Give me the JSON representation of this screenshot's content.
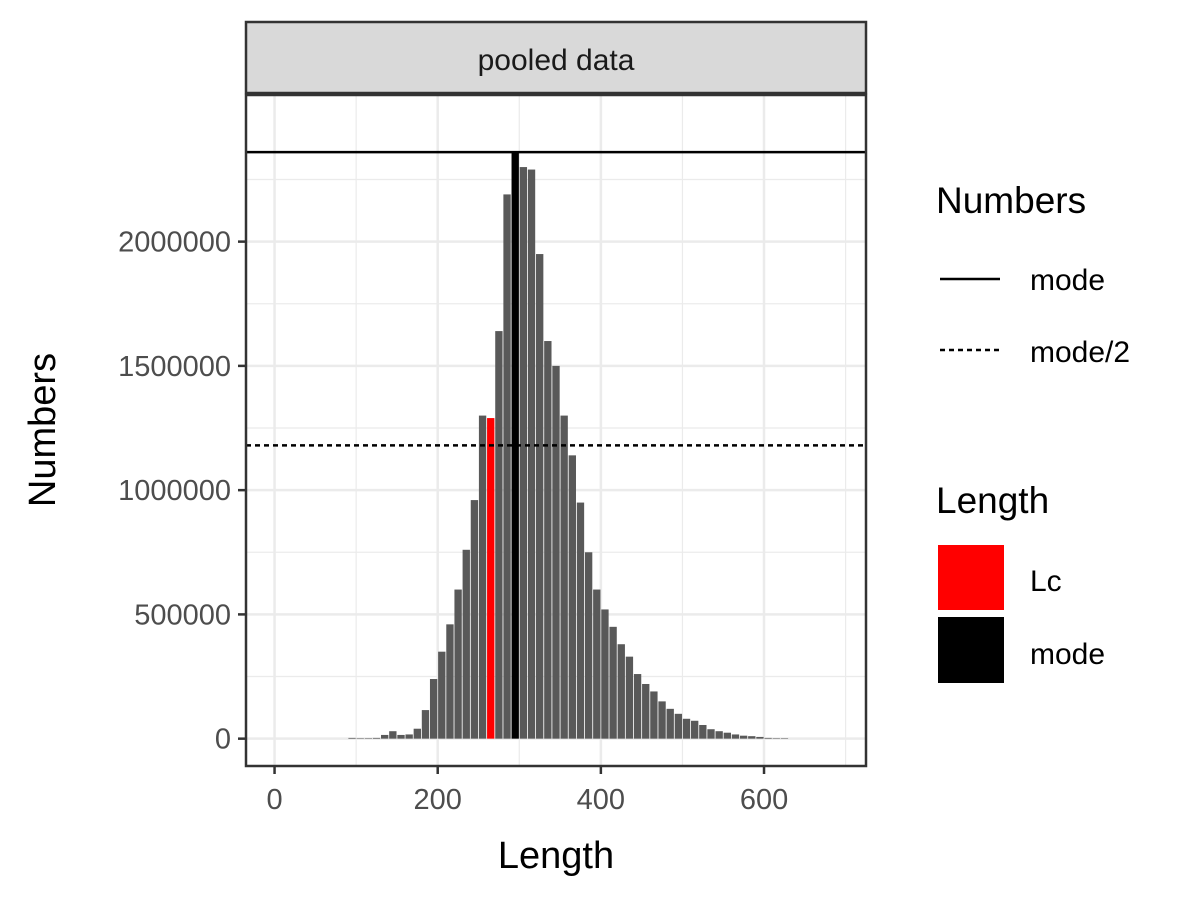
{
  "chart_data": {
    "type": "bar",
    "panel_label": "pooled data",
    "xlabel": "Length",
    "ylabel": "Numbers",
    "xlim": [
      -35,
      725
    ],
    "ylim": [
      -110000,
      2590000
    ],
    "x_ticks": [
      0,
      200,
      400,
      600
    ],
    "y_ticks": [
      0,
      500000,
      1000000,
      1500000,
      2000000
    ],
    "grid": true,
    "bar_width": 9,
    "x": [
      95,
      105,
      115,
      125,
      135,
      145,
      155,
      165,
      175,
      185,
      195,
      205,
      215,
      225,
      235,
      245,
      255,
      265,
      275,
      285,
      295,
      305,
      315,
      325,
      335,
      345,
      355,
      365,
      375,
      385,
      395,
      405,
      415,
      425,
      435,
      445,
      455,
      465,
      475,
      485,
      495,
      505,
      515,
      525,
      535,
      545,
      555,
      565,
      575,
      585,
      595,
      605,
      615,
      625
    ],
    "values": [
      3000,
      1000,
      2000,
      3000,
      15000,
      30000,
      15000,
      17000,
      40000,
      115000,
      240000,
      350000,
      460000,
      600000,
      760000,
      960000,
      1300000,
      1290000,
      1640000,
      2190000,
      2360000,
      2300000,
      2290000,
      1950000,
      1600000,
      1500000,
      1300000,
      1140000,
      950000,
      750000,
      600000,
      520000,
      450000,
      380000,
      330000,
      260000,
      220000,
      190000,
      150000,
      120000,
      100000,
      80000,
      72000,
      55000,
      38000,
      30000,
      24000,
      17000,
      12000,
      10000,
      7000,
      3000,
      2000,
      1000
    ],
    "highlights": [
      {
        "x": 265,
        "category": "Lc",
        "color": "#ff0000"
      },
      {
        "x": 295,
        "category": "mode",
        "color": "#000000"
      }
    ],
    "bar_color": "#595959",
    "reference_lines": [
      {
        "name": "mode",
        "y": 2360000,
        "linetype": "solid"
      },
      {
        "name": "mode/2",
        "y": 1180000,
        "linetype": "dashed"
      }
    ],
    "legends": [
      {
        "title": "Numbers",
        "entries": [
          {
            "label": "mode",
            "linetype": "solid"
          },
          {
            "label": "mode/2",
            "linetype": "dashed"
          }
        ]
      },
      {
        "title": "Length",
        "entries": [
          {
            "label": "Lc",
            "color": "#ff0000"
          },
          {
            "label": "mode",
            "color": "#000000"
          }
        ]
      }
    ],
    "legend_position": "right"
  }
}
